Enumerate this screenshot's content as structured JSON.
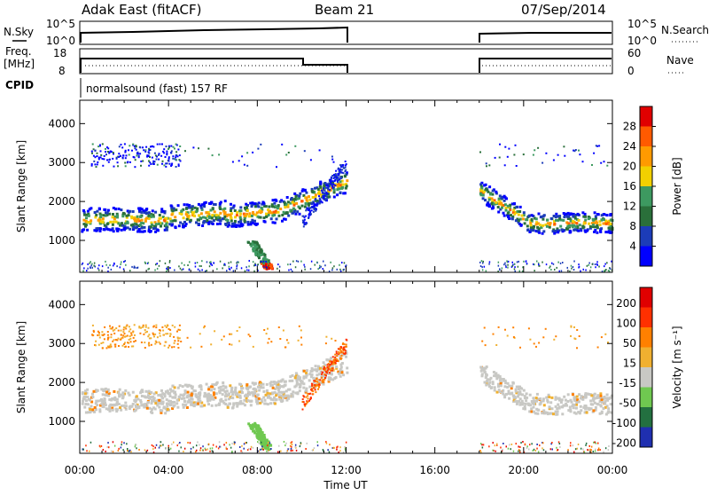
{
  "header": {
    "radar": "Adak East (fitACF)",
    "beam": "Beam 21",
    "date": "07/Sep/2014"
  },
  "panels": {
    "nsky": {
      "label": "N.Sky",
      "left_ticks": [
        "10^5",
        "10^0"
      ],
      "right_label": "N.Search",
      "right_ticks": [
        "10^5",
        "10^0"
      ]
    },
    "freq": {
      "label_top": "Freq.",
      "label_bottom": "[MHz]",
      "left_ticks": [
        "18",
        "8"
      ],
      "right_label": "Nave",
      "right_ticks": [
        "60",
        "0"
      ]
    },
    "cpid": {
      "label": "CPID",
      "text": "normalsound (fast) 157 RF"
    }
  },
  "colors": {
    "power": [
      "#0000ff",
      "#1c3cb8",
      "#2a6f3a",
      "#3d9960",
      "#f2d000",
      "#ff9a00",
      "#ff5a00",
      "#e00000"
    ],
    "velocity": [
      "#1f2fb0",
      "#237040",
      "#6fc850",
      "#c8c8c4",
      "#f0b030",
      "#ff8000",
      "#ff3000",
      "#e00000"
    ],
    "ground": "#c8c8c4"
  },
  "chart_data": [
    {
      "type": "heatmap",
      "title": "",
      "xlabel": "Time UT",
      "ylabel": "Slant Range [km]",
      "x_ticks": [
        "00:00",
        "04:00",
        "08:00",
        "12:00",
        "16:00",
        "20:00",
        "00:00"
      ],
      "y_ticks": [
        1000,
        2000,
        3000,
        4000
      ],
      "xlim": [
        0,
        24
      ],
      "ylim": [
        180,
        4600
      ],
      "colorbar": {
        "label": "Power [dB]",
        "ticks": [
          4,
          8,
          12,
          16,
          20,
          24,
          28
        ],
        "range": [
          0,
          32
        ]
      },
      "data_gap_hours": [
        12.0,
        18.0
      ]
    },
    {
      "type": "heatmap",
      "title": "",
      "xlabel": "Time UT",
      "ylabel": "Slant Range [km]",
      "x_ticks": [
        "00:00",
        "04:00",
        "08:00",
        "12:00",
        "16:00",
        "20:00",
        "00:00"
      ],
      "y_ticks": [
        1000,
        2000,
        3000,
        4000
      ],
      "xlim": [
        0,
        24
      ],
      "ylim": [
        180,
        4600
      ],
      "colorbar": {
        "label": "Velocity [m s⁻¹]",
        "ticks": [
          200,
          100,
          50,
          15,
          -15,
          -50,
          -100,
          -200
        ]
      },
      "data_gap_hours": [
        12.0,
        18.0
      ]
    }
  ]
}
